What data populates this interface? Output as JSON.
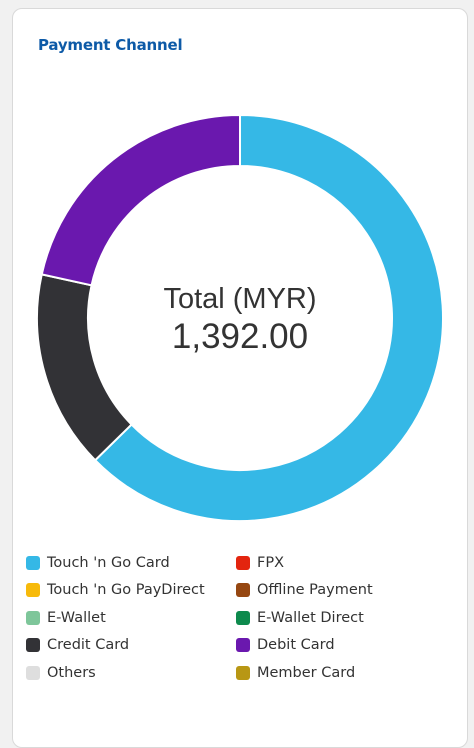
{
  "card": {
    "title": "Payment Channel"
  },
  "chart_data": {
    "type": "pie",
    "center_label": {
      "title": "Total (MYR)",
      "value": "1,392.00"
    },
    "total": 1392.0,
    "slices": [
      {
        "label": "Touch 'n Go Card",
        "value": 872.0,
        "color": "#35b8e6"
      },
      {
        "label": "Credit Card",
        "value": 220.0,
        "color": "#323236"
      },
      {
        "label": "Debit Card",
        "value": 300.0,
        "color": "#6a18ae"
      }
    ],
    "legend_position": "bottom",
    "legend": [
      {
        "label": "Touch 'n Go Card",
        "color": "#35b8e6"
      },
      {
        "label": "FPX",
        "color": "#e3250f"
      },
      {
        "label": "Touch 'n Go PayDirect",
        "color": "#f7ba0b"
      },
      {
        "label": "Offline Payment",
        "color": "#964711"
      },
      {
        "label": "E-Wallet",
        "color": "#7ec69a"
      },
      {
        "label": "E-Wallet Direct",
        "color": "#0d8a4d"
      },
      {
        "label": "Credit Card",
        "color": "#323236"
      },
      {
        "label": "Debit Card",
        "color": "#6a18ae"
      },
      {
        "label": "Others",
        "color": "#dedede"
      },
      {
        "label": "Member Card",
        "color": "#b89714"
      }
    ]
  }
}
